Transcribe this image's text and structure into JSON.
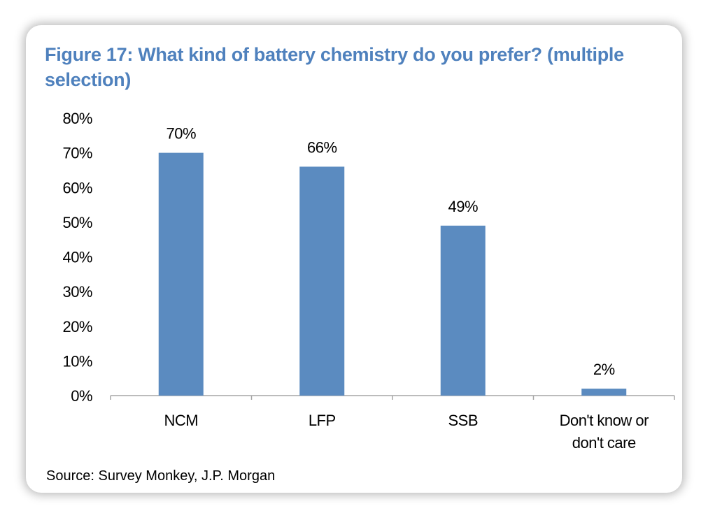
{
  "title": "Figure 17: What kind of battery chemistry do you prefer? (multiple selection)",
  "source": "Source: Survey Monkey, J.P. Morgan",
  "chart_data": {
    "type": "bar",
    "categories": [
      [
        "NCM"
      ],
      [
        "LFP"
      ],
      [
        "SSB"
      ],
      [
        "Don't know or",
        "don't care"
      ]
    ],
    "values": [
      70,
      66,
      49,
      2
    ],
    "data_labels": [
      "70%",
      "66%",
      "49%",
      "2%"
    ],
    "y_ticks": [
      "0%",
      "10%",
      "20%",
      "30%",
      "40%",
      "50%",
      "60%",
      "70%",
      "80%"
    ],
    "ylim": [
      0,
      80
    ],
    "grid": false,
    "legend": "none",
    "bar_color": "#5b8bc0",
    "title_color": "#4f81bd",
    "axis_color": "#a6a6a6"
  }
}
